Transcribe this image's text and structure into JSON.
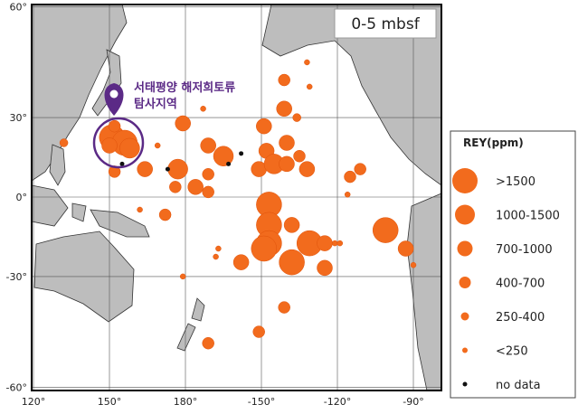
{
  "map": {
    "title": "0-5 mbsf",
    "annotation": [
      "서태평양 해저희토류",
      "탐사지역"
    ],
    "lat_ticks": [
      {
        "value": 60,
        "label": "60°"
      },
      {
        "value": 30,
        "label": "30°"
      },
      {
        "value": 0,
        "label": "0°"
      },
      {
        "value": -30,
        "label": "-30°"
      },
      {
        "value": -60,
        "label": "-60°"
      }
    ],
    "lon_ticks": [
      {
        "value": 120,
        "label": "120°"
      },
      {
        "value": 150,
        "label": "150°"
      },
      {
        "value": 180,
        "label": "180°"
      },
      {
        "value": -150,
        "label": "-150°"
      },
      {
        "value": -120,
        "label": "-120°"
      },
      {
        "value": -90,
        "label": "-90°"
      }
    ],
    "legend": {
      "title": "REY(ppm)",
      "items": [
        ">1500",
        "1000-1500",
        "700-1000",
        "400-700",
        "250-400",
        "<250",
        "no data"
      ]
    },
    "points": [
      {
        "lon": 151,
        "lat": 23,
        "class": 0
      },
      {
        "lon": 156,
        "lat": 21,
        "class": 0
      },
      {
        "lon": 158,
        "lat": 19,
        "class": 1
      },
      {
        "lon": 150,
        "lat": 20,
        "class": 2
      },
      {
        "lon": 152,
        "lat": 27,
        "class": 3
      },
      {
        "lon": 132,
        "lat": 21,
        "class": 4
      },
      {
        "lon": 152,
        "lat": 10,
        "class": 3
      },
      {
        "lon": 164,
        "lat": 11,
        "class": 2
      },
      {
        "lon": 179,
        "lat": 28,
        "class": 2
      },
      {
        "lon": -171,
        "lat": 20,
        "class": 2
      },
      {
        "lon": -165,
        "lat": 16,
        "class": 1
      },
      {
        "lon": 177,
        "lat": 11,
        "class": 1
      },
      {
        "lon": 176,
        "lat": 4,
        "class": 3
      },
      {
        "lon": -176,
        "lat": 4,
        "class": 2
      },
      {
        "lon": -171,
        "lat": 2,
        "class": 3
      },
      {
        "lon": -171,
        "lat": 9,
        "class": 3
      },
      {
        "lon": 172,
        "lat": -7,
        "class": 3
      },
      {
        "lon": -149,
        "lat": 27,
        "class": 2
      },
      {
        "lon": -148,
        "lat": 18,
        "class": 2
      },
      {
        "lon": -140,
        "lat": 21,
        "class": 2
      },
      {
        "lon": -151,
        "lat": 11,
        "class": 2
      },
      {
        "lon": -145,
        "lat": 13,
        "class": 1
      },
      {
        "lon": -140,
        "lat": 13,
        "class": 2
      },
      {
        "lon": -132,
        "lat": 11,
        "class": 2
      },
      {
        "lon": -135,
        "lat": 16,
        "class": 3
      },
      {
        "lon": -141,
        "lat": 33,
        "class": 2
      },
      {
        "lon": -141,
        "lat": 42,
        "class": 3
      },
      {
        "lon": -147,
        "lat": -3,
        "class": 0
      },
      {
        "lon": -147,
        "lat": -11,
        "class": 0
      },
      {
        "lon": -147,
        "lat": -18,
        "class": 0
      },
      {
        "lon": -149,
        "lat": -20,
        "class": 0
      },
      {
        "lon": -138,
        "lat": -25,
        "class": 0
      },
      {
        "lon": -138,
        "lat": -11,
        "class": 2
      },
      {
        "lon": -131,
        "lat": -18,
        "class": 0
      },
      {
        "lon": -125,
        "lat": -18,
        "class": 2
      },
      {
        "lon": -125,
        "lat": -27,
        "class": 2
      },
      {
        "lon": -158,
        "lat": -25,
        "class": 2
      },
      {
        "lon": -101,
        "lat": -13,
        "class": 0
      },
      {
        "lon": -93,
        "lat": -20,
        "class": 2
      },
      {
        "lon": -111,
        "lat": 11,
        "class": 3
      },
      {
        "lon": -115,
        "lat": 8,
        "class": 3
      },
      {
        "lon": -116,
        "lat": 1,
        "class": 5
      },
      {
        "lon": -141,
        "lat": -40,
        "class": 3
      },
      {
        "lon": -151,
        "lat": -47,
        "class": 3
      },
      {
        "lon": -171,
        "lat": -50,
        "class": 3
      },
      {
        "lon": -136,
        "lat": 30,
        "class": 4
      },
      {
        "lon": -131,
        "lat": 40,
        "class": 5
      },
      {
        "lon": -132,
        "lat": 47,
        "class": 5
      },
      {
        "lon": -167,
        "lat": -20,
        "class": 5
      },
      {
        "lon": -168,
        "lat": -23,
        "class": 5
      },
      {
        "lon": 169,
        "lat": 20,
        "class": 5
      },
      {
        "lon": 162,
        "lat": -5,
        "class": 5
      },
      {
        "lon": -121,
        "lat": -18,
        "class": 5
      },
      {
        "lon": -119,
        "lat": -18,
        "class": 5
      },
      {
        "lon": -90,
        "lat": -26,
        "class": 5
      },
      {
        "lon": -173,
        "lat": 33,
        "class": 5
      },
      {
        "lon": 179,
        "lat": -30,
        "class": 5
      },
      {
        "lon": 155,
        "lat": 13,
        "class": 6
      },
      {
        "lon": 173,
        "lat": 11,
        "class": 6
      },
      {
        "lon": -163,
        "lat": 13,
        "class": 6
      },
      {
        "lon": -158,
        "lat": 17,
        "class": 6
      }
    ]
  }
}
